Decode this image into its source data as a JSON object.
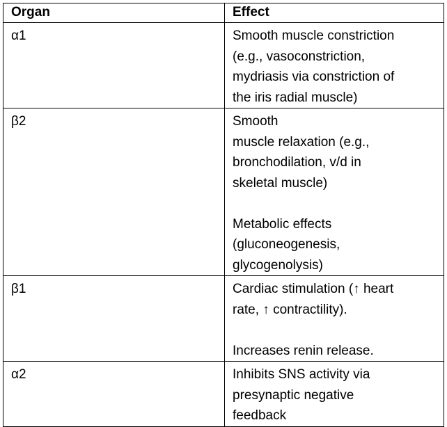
{
  "table": {
    "headers": {
      "organ": "Organ",
      "effect": "Effect"
    },
    "rows": [
      {
        "organ": "α1",
        "effect_lines": [
          "Smooth muscle constriction",
          "(e.g., vasoconstriction,",
          "mydriasis via constriction of",
          "the iris radial muscle)"
        ]
      },
      {
        "organ": "β2",
        "effect_lines": [
          "Smooth",
          "muscle relaxation (e.g.,",
          "bronchodilation, v/d in",
          "skeletal muscle)",
          "",
          "Metabolic effects",
          "(gluconeogenesis,",
          "glycogenolysis)"
        ]
      },
      {
        "organ": "β1",
        "effect_lines": [
          "Cardiac stimulation (↑ heart",
          "rate, ↑ contractility).",
          "",
          "Increases renin release."
        ]
      },
      {
        "organ": "α2",
        "effect_lines": [
          "Inhibits SNS activity via",
          "presynaptic negative",
          "feedback"
        ]
      }
    ]
  }
}
